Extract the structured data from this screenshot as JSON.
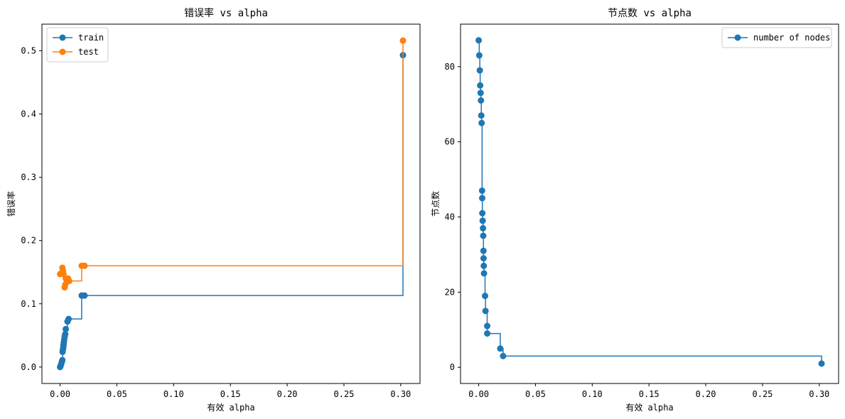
{
  "chart_data": [
    {
      "type": "line",
      "step": "post",
      "title": "错误率 vs alpha",
      "xlabel": "有效 alpha",
      "ylabel": "错误率",
      "xlim": [
        -0.016,
        0.317
      ],
      "ylim": [
        -0.026,
        0.542
      ],
      "xticks": [
        0.0,
        0.05,
        0.1,
        0.15,
        0.2,
        0.25,
        0.3
      ],
      "xtick_labels": [
        "0.00",
        "0.05",
        "0.10",
        "0.15",
        "0.20",
        "0.25",
        "0.30"
      ],
      "yticks": [
        0.0,
        0.1,
        0.2,
        0.3,
        0.4,
        0.5
      ],
      "ytick_labels": [
        "0.0",
        "0.1",
        "0.2",
        "0.3",
        "0.4",
        "0.5"
      ],
      "legend_position": "top-left",
      "grid": false,
      "series": [
        {
          "name": "train",
          "color": "#1f77b4",
          "x": [
            0.0,
            0.0005,
            0.001,
            0.0015,
            0.002,
            0.0022,
            0.0025,
            0.0028,
            0.003,
            0.0033,
            0.0036,
            0.004,
            0.0045,
            0.005,
            0.0065,
            0.0075,
            0.019,
            0.0215,
            0.302
          ],
          "y": [
            0.0,
            0.002,
            0.005,
            0.008,
            0.011,
            0.024,
            0.028,
            0.031,
            0.035,
            0.039,
            0.043,
            0.048,
            0.052,
            0.06,
            0.072,
            0.076,
            0.113,
            0.113,
            0.493
          ]
        },
        {
          "name": "test",
          "color": "#ff7f0e",
          "x": [
            0.0,
            0.0015,
            0.002,
            0.0025,
            0.003,
            0.004,
            0.0045,
            0.005,
            0.006,
            0.007,
            0.008,
            0.019,
            0.0215,
            0.302
          ],
          "y": [
            0.147,
            0.149,
            0.157,
            0.152,
            0.147,
            0.126,
            0.13,
            0.14,
            0.135,
            0.14,
            0.136,
            0.16,
            0.16,
            0.516
          ]
        }
      ]
    },
    {
      "type": "line",
      "step": "post",
      "title": "节点数 vs alpha",
      "xlabel": "有效 alpha",
      "ylabel": "节点数",
      "xlim": [
        -0.016,
        0.317
      ],
      "ylim": [
        -4.3,
        91.3
      ],
      "xticks": [
        0.0,
        0.05,
        0.1,
        0.15,
        0.2,
        0.25,
        0.3
      ],
      "xtick_labels": [
        "0.00",
        "0.05",
        "0.10",
        "0.15",
        "0.20",
        "0.25",
        "0.30"
      ],
      "yticks": [
        0,
        20,
        40,
        60,
        80
      ],
      "ytick_labels": [
        "0",
        "20",
        "40",
        "60",
        "80"
      ],
      "legend_position": "top-right",
      "grid": false,
      "series": [
        {
          "name": "number of nodes",
          "color": "#1f77b4",
          "x": [
            0.0,
            0.0005,
            0.001,
            0.0013,
            0.0017,
            0.002,
            0.0023,
            0.0026,
            0.003,
            0.0031,
            0.0032,
            0.0035,
            0.0038,
            0.004,
            0.0042,
            0.0043,
            0.0045,
            0.0047,
            0.0056,
            0.006,
            0.0075,
            0.0075,
            0.019,
            0.0215,
            0.302
          ],
          "y": [
            87,
            83,
            79,
            75,
            73,
            71,
            67,
            65,
            47,
            45,
            41,
            39,
            37,
            35,
            31,
            29,
            27,
            25,
            19,
            15,
            11,
            9,
            5,
            3,
            1
          ]
        }
      ]
    }
  ]
}
